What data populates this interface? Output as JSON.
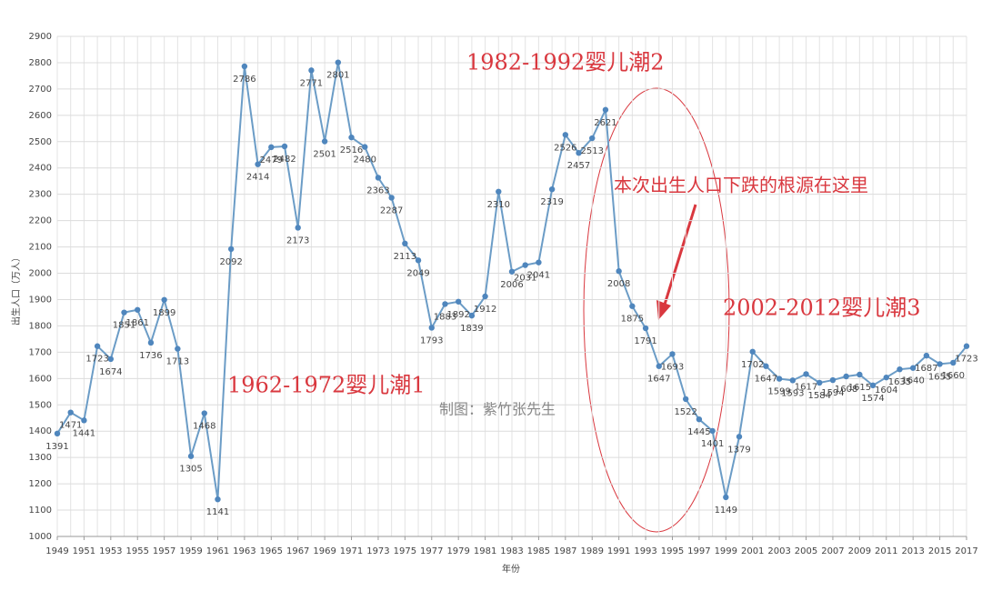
{
  "chart_data": {
    "type": "line",
    "x_label": "年份",
    "y_label": "出生人口（万人）",
    "annotations": [
      "1982-1992婴儿潮2",
      "本次出生人口下跌的根源在这里",
      "2002-2012婴儿潮3",
      "1962-1972婴儿潮1",
      "制图：紫竹张先生"
    ],
    "x": [
      1949,
      1950,
      1951,
      1952,
      1953,
      1954,
      1955,
      1956,
      1957,
      1958,
      1959,
      1960,
      1961,
      1962,
      1963,
      1964,
      1965,
      1966,
      1967,
      1968,
      1969,
      1970,
      1971,
      1972,
      1973,
      1974,
      1975,
      1976,
      1977,
      1978,
      1979,
      1980,
      1981,
      1982,
      1983,
      1984,
      1985,
      1986,
      1987,
      1988,
      1989,
      1990,
      1991,
      1992,
      1993,
      1994,
      1995,
      1996,
      1997,
      1998,
      1999,
      2000,
      2001,
      2002,
      2003,
      2004,
      2005,
      2006,
      2007,
      2008,
      2009,
      2010,
      2011,
      2012,
      2013,
      2014,
      2015,
      2016,
      2017
    ],
    "values": [
      1391,
      1471,
      1441,
      1723,
      1674,
      1851,
      1861,
      1736,
      1899,
      1713,
      1305,
      1468,
      1141,
      2092,
      2786,
      2414,
      2479,
      2482,
      2173,
      2771,
      2501,
      2801,
      2516,
      2480,
      2363,
      2287,
      2113,
      2049,
      1793,
      1883,
      1892,
      1839,
      1912,
      2310,
      2006,
      2031,
      2041,
      2319,
      2526,
      2457,
      2513,
      2621,
      2008,
      1875,
      1791,
      1647,
      1693,
      1522,
      1445,
      1401,
      1149,
      1379,
      1702,
      1647,
      1599,
      1593,
      1617,
      1584,
      1594,
      1608,
      1615,
      1574,
      1604,
      1635,
      1640,
      1687,
      1655,
      1660,
      1723
    ],
    "color": "#6b9cc6",
    "xlim": [
      1949,
      2017
    ],
    "xticks": [
      1949,
      1951,
      1953,
      1955,
      1957,
      1959,
      1961,
      1963,
      1965,
      1967,
      1969,
      1971,
      1973,
      1975,
      1977,
      1979,
      1981,
      1983,
      1985,
      1987,
      1989,
      1991,
      1993,
      1995,
      1997,
      1999,
      2001,
      2003,
      2005,
      2007,
      2009,
      2011,
      2013,
      2015,
      2017
    ],
    "ylim": [
      1000,
      2900
    ],
    "yticks": [
      1000,
      1100,
      1200,
      1300,
      1400,
      1500,
      1600,
      1700,
      1800,
      1900,
      2000,
      2100,
      2200,
      2300,
      2400,
      2500,
      2600,
      2700,
      2800,
      2900
    ],
    "grid": true
  }
}
